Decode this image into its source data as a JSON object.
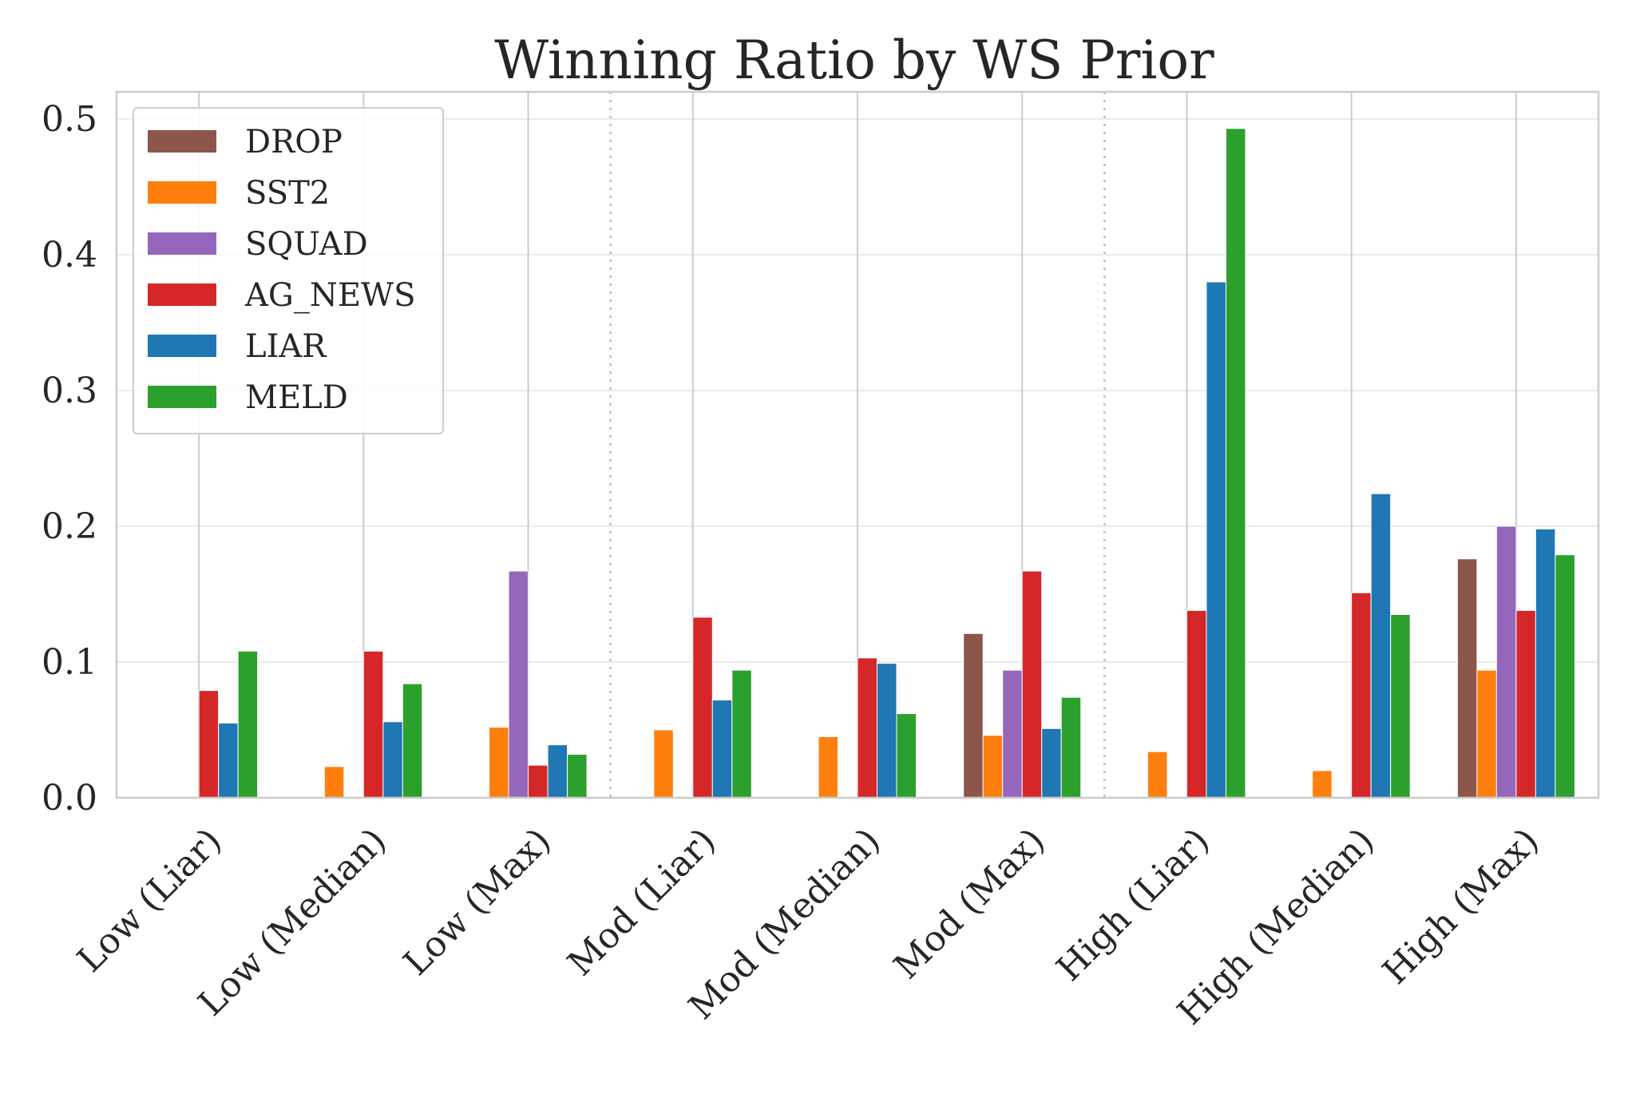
{
  "chart_data": {
    "type": "bar",
    "title": "Winning Ratio by WS Prior",
    "xlabel": "",
    "ylabel": "",
    "ylim": [
      0,
      0.52
    ],
    "yticks": [
      0.0,
      0.1,
      0.2,
      0.3,
      0.4,
      0.5
    ],
    "ytick_labels": [
      "0.0",
      "0.1",
      "0.2",
      "0.3",
      "0.4",
      "0.5"
    ],
    "grid": true,
    "legend_position": "top-left",
    "group_separators_after": [
      2,
      5
    ],
    "categories": [
      "Low (Liar)",
      "Low (Median)",
      "Low (Max)",
      "Mod (Liar)",
      "Mod (Median)",
      "Mod (Max)",
      "High (Liar)",
      "High (Median)",
      "High (Max)"
    ],
    "series": [
      {
        "name": "DROP",
        "color": "#8c564b",
        "values": [
          0,
          0,
          0,
          0,
          0,
          0.121,
          0,
          0,
          0.176
        ]
      },
      {
        "name": "SST2",
        "color": "#ff7f0e",
        "values": [
          0,
          0.023,
          0.052,
          0.05,
          0.045,
          0.046,
          0.034,
          0.02,
          0.094
        ]
      },
      {
        "name": "SQUAD",
        "color": "#9467bd",
        "values": [
          0,
          0,
          0.167,
          0,
          0,
          0.094,
          0,
          0,
          0.2
        ]
      },
      {
        "name": "AG_NEWS",
        "color": "#d62728",
        "values": [
          0.079,
          0.108,
          0.024,
          0.133,
          0.103,
          0.167,
          0.138,
          0.151,
          0.138
        ]
      },
      {
        "name": "LIAR",
        "color": "#1f77b4",
        "values": [
          0.055,
          0.056,
          0.039,
          0.072,
          0.099,
          0.051,
          0.38,
          0.224,
          0.198
        ]
      },
      {
        "name": "MELD",
        "color": "#2ca02c",
        "values": [
          0.108,
          0.084,
          0.032,
          0.094,
          0.062,
          0.074,
          0.493,
          0.135,
          0.179
        ]
      }
    ]
  }
}
